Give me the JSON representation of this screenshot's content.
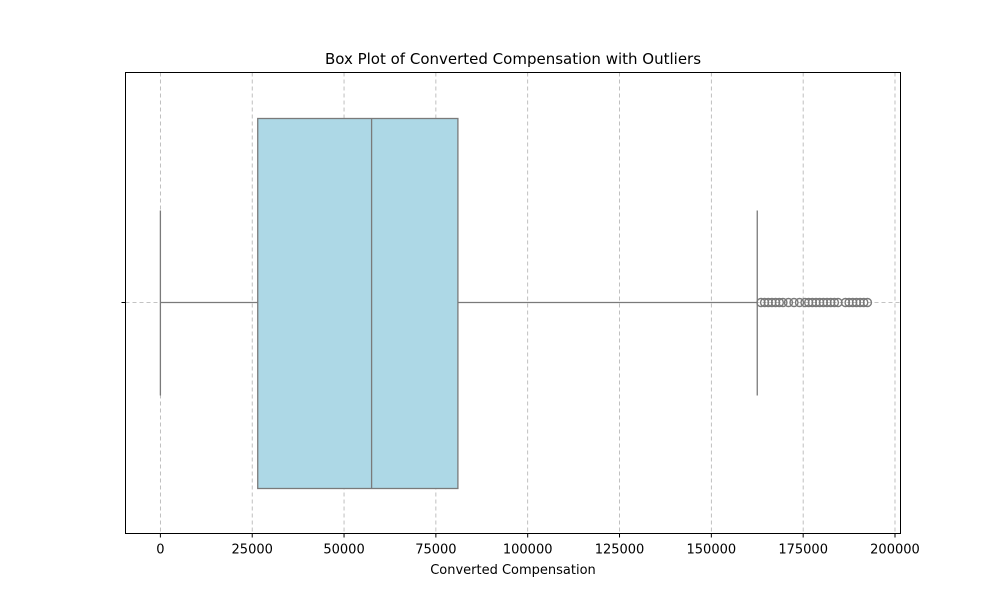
{
  "chart_data": {
    "type": "box",
    "orientation": "horizontal",
    "title": "Box Plot of Converted Compensation with Outliers",
    "xlabel": "Converted Compensation",
    "ylabel": "",
    "xlim": [
      -9500,
      201500
    ],
    "xticks": [
      0,
      25000,
      50000,
      75000,
      100000,
      125000,
      150000,
      175000,
      200000
    ],
    "xtick_labels": [
      "0",
      "25000",
      "50000",
      "75000",
      "100000",
      "125000",
      "150000",
      "175000",
      "200000"
    ],
    "grid": true,
    "box": {
      "min": 0,
      "q1": 26500,
      "median": 57500,
      "q3": 81000,
      "max": 162500,
      "outliers": [
        163500,
        164500,
        165500,
        166500,
        167500,
        168500,
        169500,
        171000,
        172500,
        174000,
        175500,
        176500,
        177500,
        178500,
        179500,
        180500,
        181500,
        182500,
        183500,
        184500,
        186500,
        187500,
        188500,
        189500,
        190500,
        191500,
        192500
      ]
    },
    "colors": {
      "box_fill": "#add8e6",
      "line": "#7a7a7a",
      "outlier_edge": "#7a7a7a"
    }
  }
}
